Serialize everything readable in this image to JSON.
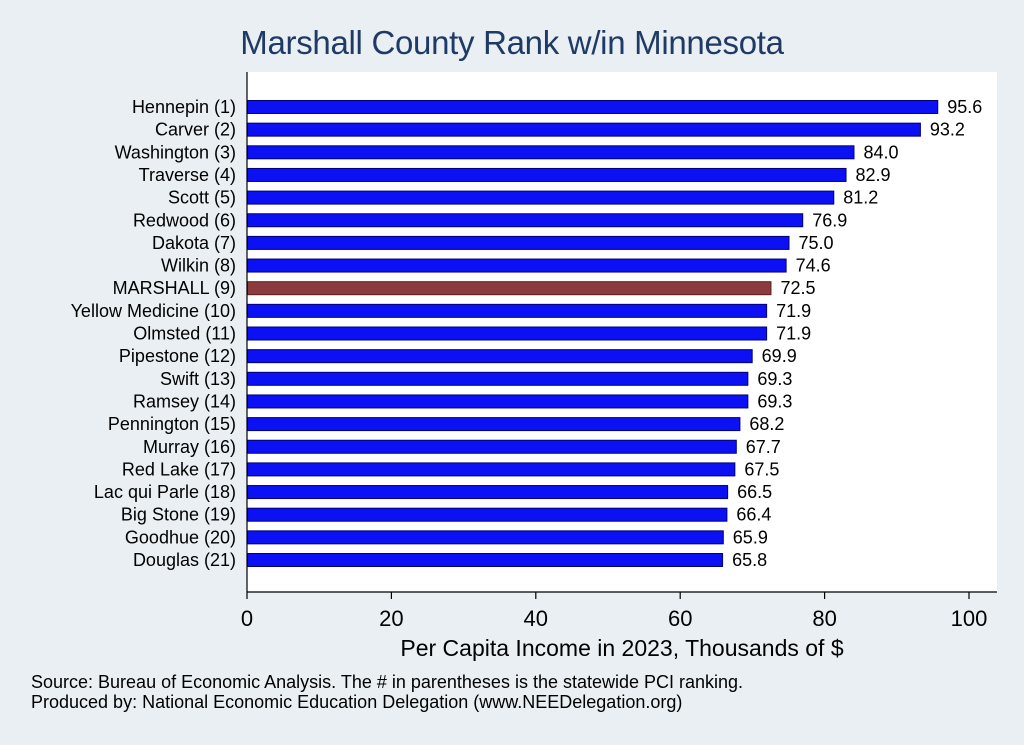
{
  "chart_data": {
    "type": "bar",
    "orientation": "horizontal",
    "title": "Marshall County Rank w/in Minnesota",
    "xlabel": "Per Capita Income in 2023, Thousands of $",
    "ylabel": "",
    "xlim": [
      0,
      100
    ],
    "xticks": [
      0,
      20,
      40,
      60,
      80,
      100
    ],
    "grid": false,
    "bar_color": "#0b11f2",
    "highlight_color": "#8b3a3d",
    "categories": [
      "Hennepin  (1)",
      "Carver  (2)",
      "Washington  (3)",
      "Traverse  (4)",
      "Scott  (5)",
      "Redwood  (6)",
      "Dakota  (7)",
      "Wilkin  (8)",
      "MARSHALL  (9)",
      "Yellow Medicine (10)",
      "Olmsted (11)",
      "Pipestone (12)",
      "Swift (13)",
      "Ramsey (14)",
      "Pennington (15)",
      "Murray (16)",
      "Red Lake (17)",
      "Lac qui Parle (18)",
      "Big Stone (19)",
      "Goodhue (20)",
      "Douglas (21)"
    ],
    "values": [
      95.6,
      93.2,
      84.0,
      82.9,
      81.2,
      76.9,
      75.0,
      74.6,
      72.5,
      71.9,
      71.9,
      69.9,
      69.3,
      69.3,
      68.2,
      67.7,
      67.5,
      66.5,
      66.4,
      65.9,
      65.8
    ],
    "value_labels": [
      "95.6",
      "93.2",
      "84.0",
      "82.9",
      "81.2",
      "76.9",
      "75.0",
      "74.6",
      "72.5",
      "71.9",
      "71.9",
      "69.9",
      "69.3",
      "69.3",
      "68.2",
      "67.7",
      "67.5",
      "66.5",
      "66.4",
      "65.9",
      "65.8"
    ],
    "highlight": "MARSHALL  (9)"
  },
  "notes": {
    "source": "Source: Bureau of Economic Analysis. The # in parentheses is the statewide PCI ranking.",
    "produced_by": "Produced by: National Economic Education Delegation (www.NEEDelegation.org)"
  }
}
